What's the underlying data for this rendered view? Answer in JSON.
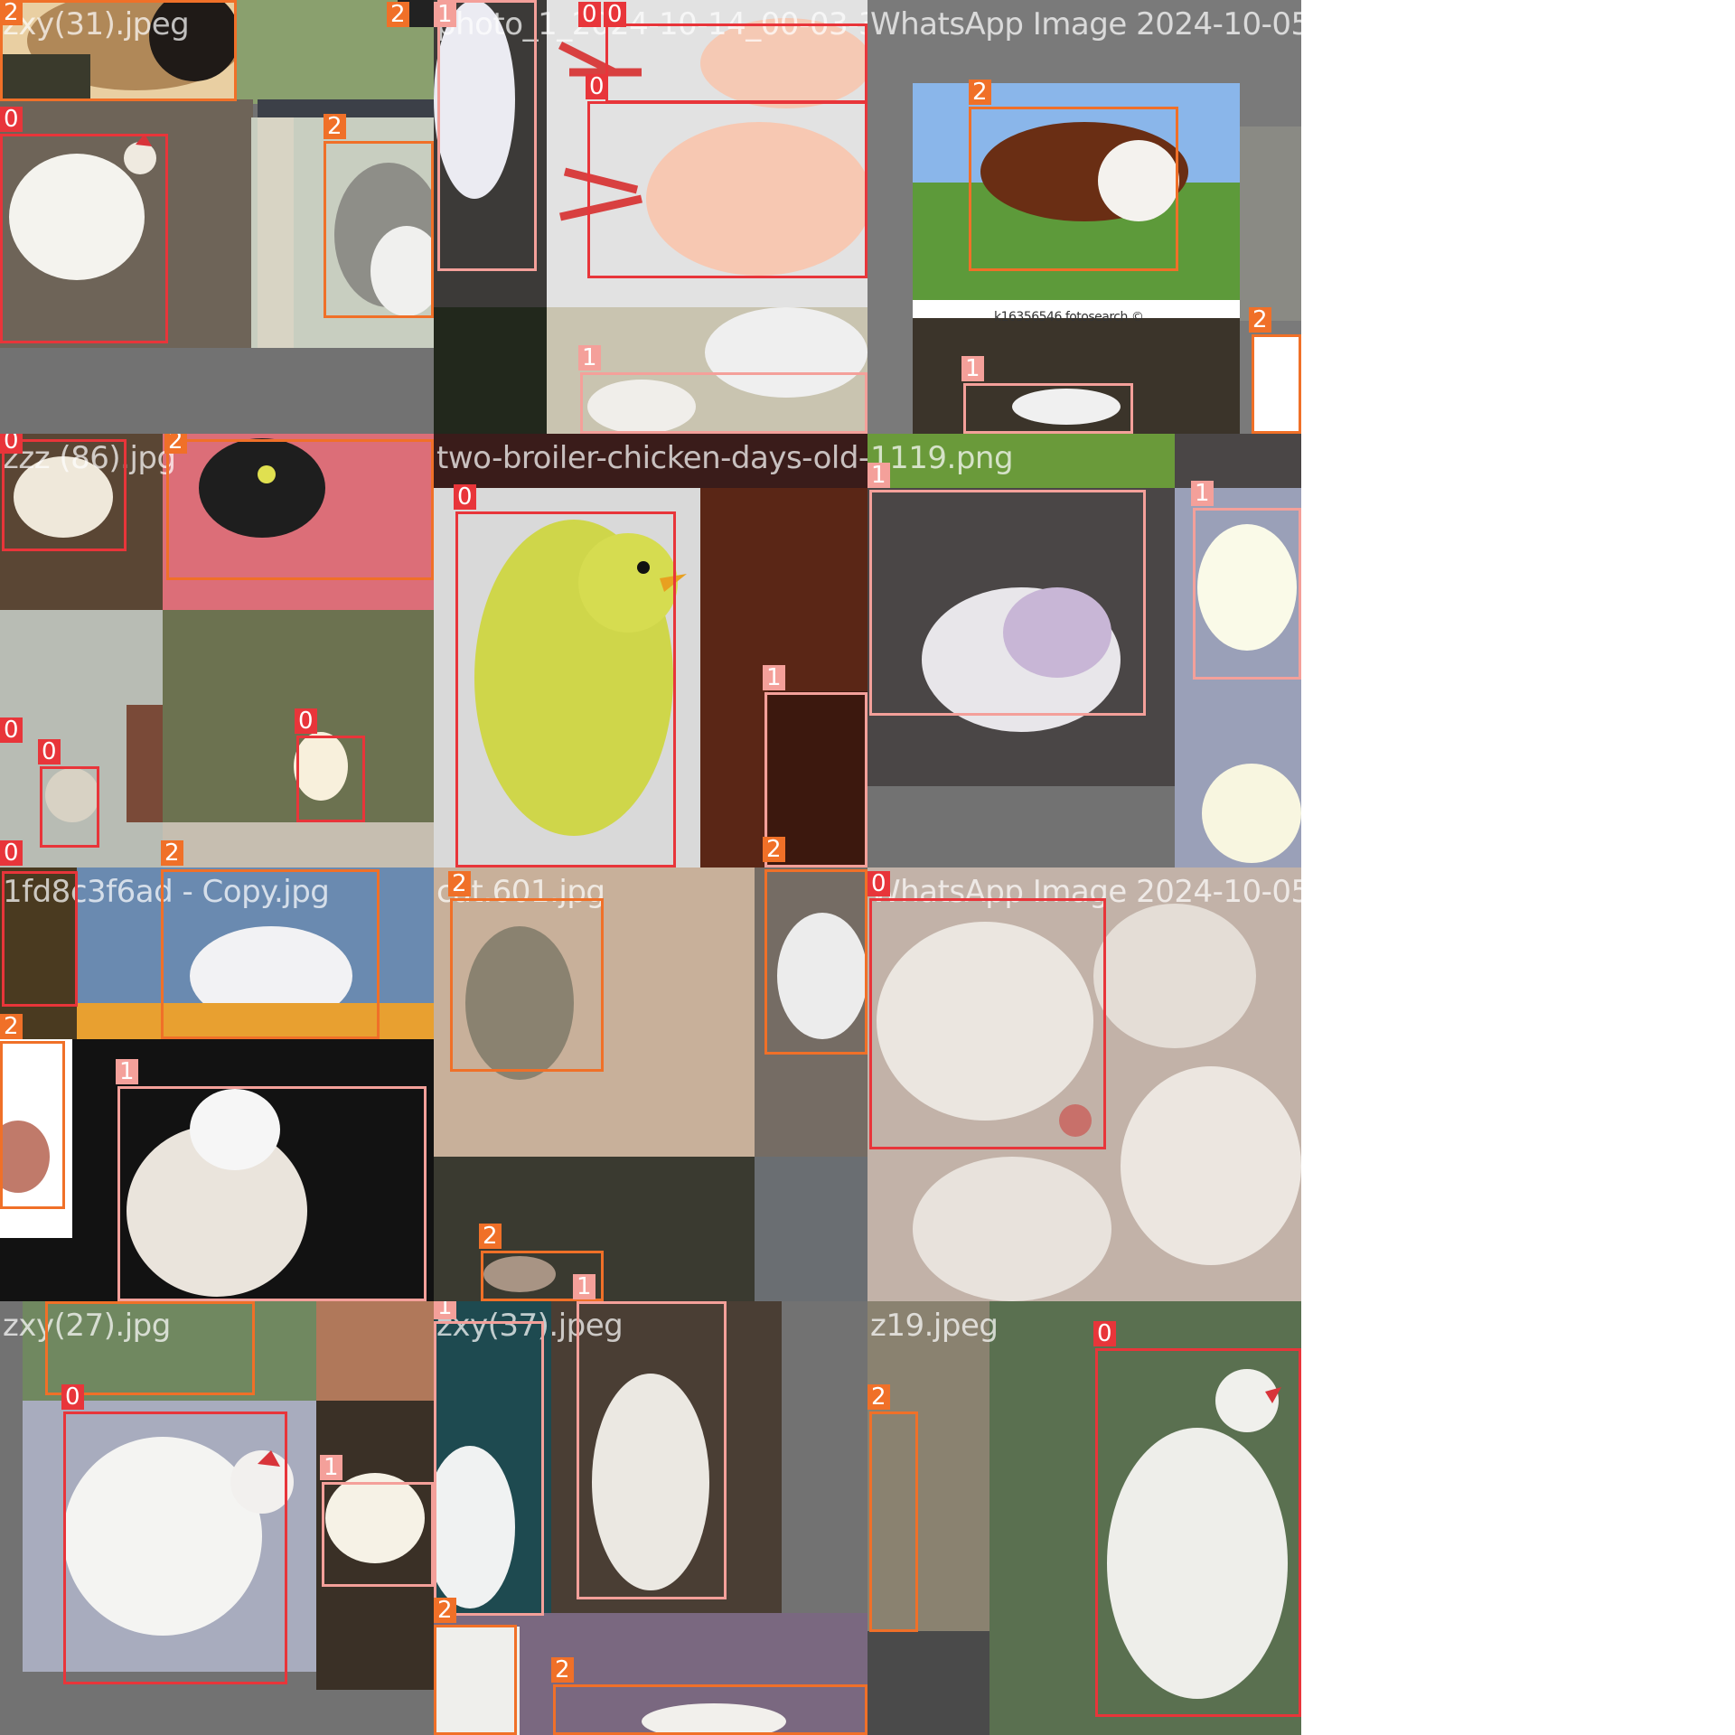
{
  "class_colors": {
    "0": "#e8353a",
    "1": "#f4a09a",
    "2": "#f07028"
  },
  "tiles": [
    {
      "filename": "zxy(31).jpeg",
      "labels": [
        "2",
        "2",
        "1",
        "0",
        "0",
        "0",
        "0",
        "2"
      ]
    },
    {
      "filename": "photo_1_2024-10-14_00-03-32.jpg",
      "labels": [
        "1",
        "0",
        "0",
        "0",
        "1"
      ]
    },
    {
      "filename": "WhatsApp Image 2024-10-05 at 19.21.53_bf",
      "labels": [
        "2",
        "1",
        "2"
      ]
    },
    {
      "filename": "zzz (86).jpg",
      "labels": [
        "0",
        "2",
        "0",
        "0",
        "0",
        "0",
        "2"
      ]
    },
    {
      "filename": "two-broiler-chicken-days-old-white-10706",
      "labels": [
        "0",
        "1",
        "2"
      ]
    },
    {
      "filename": "1119.png",
      "labels": [
        "1",
        "1"
      ]
    },
    {
      "filename": "1fd8c3f6ad - Copy.jpg",
      "labels": [
        "2",
        "2",
        "1"
      ]
    },
    {
      "filename": "cat.601.jpg",
      "labels": [
        "2",
        "2",
        "1"
      ]
    },
    {
      "filename": "WhatsApp Image 2024-10-05 at 19.48.58_5f",
      "labels": [
        "0"
      ]
    },
    {
      "filename": "zxy(27).jpg",
      "labels": [
        "2",
        "0",
        "1",
        "1"
      ]
    },
    {
      "filename": "zxy(37).jpeg",
      "labels": [
        "1",
        "1",
        "2",
        "2"
      ]
    },
    {
      "filename": "z19.jpeg",
      "labels": [
        "2",
        "0"
      ]
    }
  ],
  "overlay_texts": {
    "tile2_extra": "k16356546 fotosearch ©",
    "tile2_name_overlap": "WhatsApp Image 2024-10-05 at 19.21.53_bf"
  }
}
